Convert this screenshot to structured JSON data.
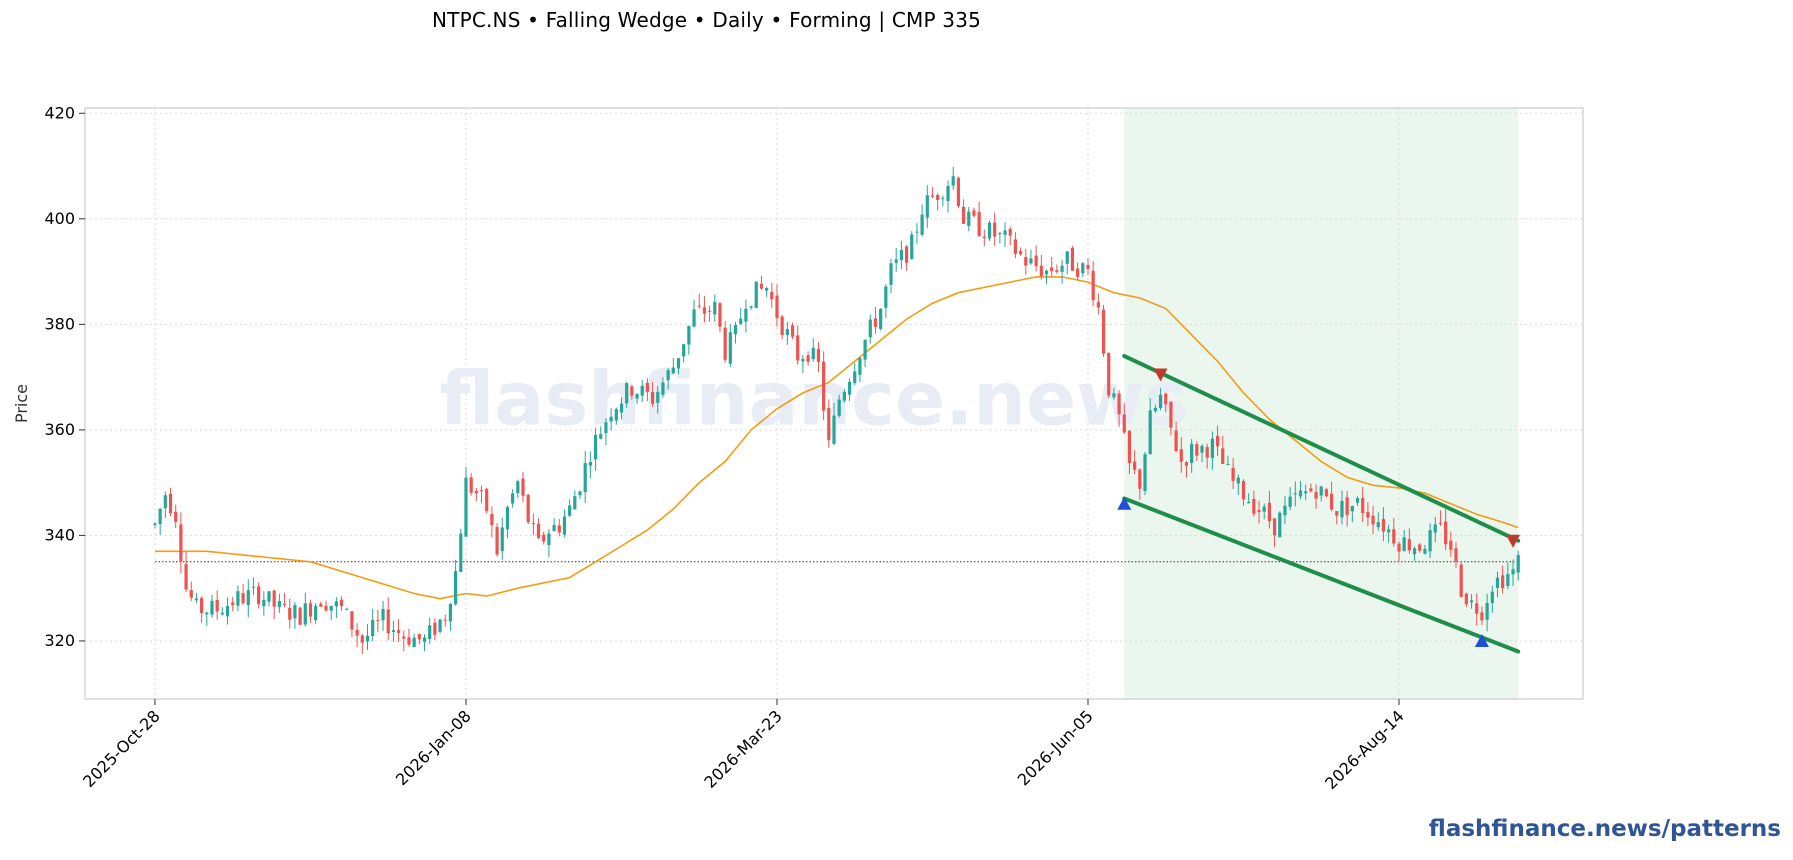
{
  "header": {
    "title": "NTPC.NS  •  Falling Wedge  •  Daily  •  Forming  |  CMP 335"
  },
  "watermark": "flashfinance.news",
  "brand": "flashfinance.news/patterns",
  "colors": {
    "up": "#26a69a",
    "down": "#ef5350",
    "ma": "#f39c12",
    "wedge": "#1e8e4a",
    "highlight": "#eaf6ee",
    "marker_low": "#1f4fd8",
    "marker_high": "#c0392b"
  },
  "chart_data": {
    "type": "candlestick",
    "ylabel": "Price",
    "ylim": [
      309,
      421
    ],
    "yticks": [
      320,
      340,
      360,
      380,
      400,
      420
    ],
    "xlim": [
      -13.5,
      275.5
    ],
    "x_ticks": [
      {
        "index": 0,
        "label": "2025-Oct-28"
      },
      {
        "index": 60,
        "label": "2026-Jan-08"
      },
      {
        "index": 120,
        "label": "2026-Mar-23"
      },
      {
        "index": 180,
        "label": "2026-Jun-05"
      },
      {
        "index": 240,
        "label": "2026-Aug-14"
      }
    ],
    "cmp": 335,
    "pattern_window": {
      "start": 187,
      "end": 263
    },
    "upper_trendline": {
      "from": [
        187,
        374
      ],
      "to": [
        263,
        339
      ]
    },
    "lower_trendline": {
      "from": [
        187,
        347
      ],
      "to": [
        263,
        318
      ]
    },
    "swing_highs": [
      {
        "x": 194,
        "y": 370.5
      },
      {
        "x": 262,
        "y": 339
      }
    ],
    "swing_lows": [
      {
        "x": 187,
        "y": 346
      },
      {
        "x": 256,
        "y": 320
      }
    ],
    "price_anchors": [
      [
        0,
        342
      ],
      [
        2,
        348
      ],
      [
        4,
        344
      ],
      [
        6,
        330
      ],
      [
        8,
        326
      ],
      [
        12,
        326
      ],
      [
        16,
        328
      ],
      [
        20,
        329
      ],
      [
        24,
        326
      ],
      [
        28,
        325
      ],
      [
        32,
        328
      ],
      [
        36,
        326
      ],
      [
        40,
        320
      ],
      [
        44,
        324
      ],
      [
        48,
        321
      ],
      [
        52,
        320
      ],
      [
        56,
        325
      ],
      [
        58,
        333
      ],
      [
        60,
        350
      ],
      [
        62,
        348
      ],
      [
        64,
        345
      ],
      [
        66,
        337
      ],
      [
        68,
        345
      ],
      [
        70,
        350
      ],
      [
        72,
        343
      ],
      [
        74,
        338
      ],
      [
        76,
        341
      ],
      [
        78,
        342
      ],
      [
        80,
        345
      ],
      [
        82,
        350
      ],
      [
        84,
        356
      ],
      [
        86,
        360
      ],
      [
        88,
        364
      ],
      [
        92,
        368
      ],
      [
        96,
        366
      ],
      [
        100,
        372
      ],
      [
        104,
        382
      ],
      [
        108,
        383
      ],
      [
        110,
        375
      ],
      [
        112,
        378
      ],
      [
        114,
        385
      ],
      [
        118,
        387
      ],
      [
        120,
        382
      ],
      [
        122,
        378
      ],
      [
        124,
        374
      ],
      [
        126,
        375
      ],
      [
        128,
        372
      ],
      [
        130,
        357
      ],
      [
        132,
        366
      ],
      [
        136,
        375
      ],
      [
        140,
        383
      ],
      [
        142,
        390
      ],
      [
        146,
        395
      ],
      [
        148,
        402
      ],
      [
        150,
        404
      ],
      [
        154,
        408
      ],
      [
        156,
        400
      ],
      [
        160,
        398
      ],
      [
        164,
        396
      ],
      [
        168,
        392
      ],
      [
        172,
        390
      ],
      [
        176,
        392
      ],
      [
        180,
        390
      ],
      [
        182,
        383
      ],
      [
        184,
        368
      ],
      [
        186,
        362
      ],
      [
        188,
        353
      ],
      [
        190,
        350
      ],
      [
        192,
        362
      ],
      [
        194,
        366
      ],
      [
        196,
        360
      ],
      [
        198,
        354
      ],
      [
        200,
        356
      ],
      [
        204,
        357
      ],
      [
        208,
        350
      ],
      [
        212,
        346
      ],
      [
        216,
        342
      ],
      [
        220,
        347
      ],
      [
        224,
        349
      ],
      [
        228,
        345
      ],
      [
        232,
        346
      ],
      [
        236,
        343
      ],
      [
        240,
        339
      ],
      [
        244,
        338
      ],
      [
        248,
        341
      ],
      [
        250,
        338
      ],
      [
        252,
        330
      ],
      [
        254,
        327
      ],
      [
        256,
        326
      ],
      [
        258,
        331
      ],
      [
        260,
        332
      ],
      [
        262,
        333
      ],
      [
        263,
        335
      ]
    ],
    "ma_points": [
      [
        0,
        337
      ],
      [
        10,
        337
      ],
      [
        20,
        336
      ],
      [
        30,
        335
      ],
      [
        40,
        332
      ],
      [
        50,
        329
      ],
      [
        55,
        328
      ],
      [
        60,
        329
      ],
      [
        64,
        328.5
      ],
      [
        70,
        330
      ],
      [
        80,
        332
      ],
      [
        85,
        335
      ],
      [
        90,
        338
      ],
      [
        95,
        341
      ],
      [
        100,
        345
      ],
      [
        105,
        350
      ],
      [
        110,
        354
      ],
      [
        115,
        360
      ],
      [
        120,
        364
      ],
      [
        125,
        367
      ],
      [
        130,
        369
      ],
      [
        135,
        373
      ],
      [
        140,
        377
      ],
      [
        145,
        381
      ],
      [
        150,
        384
      ],
      [
        155,
        386
      ],
      [
        160,
        387
      ],
      [
        165,
        388
      ],
      [
        170,
        389
      ],
      [
        175,
        389
      ],
      [
        180,
        388
      ],
      [
        185,
        386
      ],
      [
        190,
        385
      ],
      [
        195,
        383
      ],
      [
        200,
        378
      ],
      [
        205,
        373
      ],
      [
        210,
        367
      ],
      [
        215,
        362
      ],
      [
        220,
        358
      ],
      [
        225,
        354
      ],
      [
        230,
        351
      ],
      [
        235,
        349.5
      ],
      [
        240,
        349
      ],
      [
        245,
        348
      ],
      [
        250,
        346
      ],
      [
        255,
        344
      ],
      [
        260,
        342.5
      ],
      [
        263,
        341.5
      ]
    ]
  }
}
